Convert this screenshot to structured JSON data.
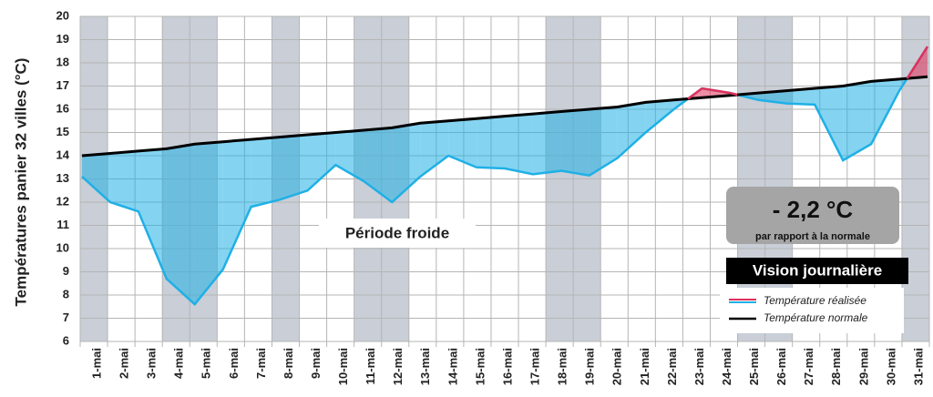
{
  "chart_data": {
    "type": "line",
    "y_axis_label": "Températures panier 32 villes (°C)",
    "categories": [
      "1-mai",
      "2-mai",
      "3-mai",
      "4-mai",
      "5-mai",
      "6-mai",
      "7-mai",
      "8-mai",
      "9-mai",
      "10-mai",
      "11-mai",
      "12-mai",
      "13-mai",
      "14-mai",
      "15-mai",
      "16-mai",
      "17-mai",
      "18-mai",
      "19-mai",
      "20-mai",
      "21-mai",
      "22-mai",
      "23-mai",
      "24-mai",
      "25-mai",
      "26-mai",
      "27-mai",
      "28-mai",
      "29-mai",
      "30-mai",
      "31-mai"
    ],
    "series": [
      {
        "name": "Température réalisée",
        "color": "#1fb0e6",
        "color_above": "#e0305a",
        "values": [
          13.1,
          12.0,
          11.6,
          8.7,
          7.6,
          9.1,
          11.8,
          12.1,
          12.5,
          13.6,
          12.9,
          12.0,
          13.1,
          14.0,
          13.5,
          13.45,
          13.2,
          13.35,
          13.15,
          13.9,
          15.0,
          16.0,
          16.9,
          16.7,
          16.4,
          16.25,
          16.2,
          13.8,
          14.5,
          16.8,
          18.7
        ]
      },
      {
        "name": "Température normale",
        "color": "#000000",
        "values": [
          14.0,
          14.1,
          14.2,
          14.3,
          14.5,
          14.6,
          14.7,
          14.8,
          14.9,
          15.0,
          15.1,
          15.2,
          15.4,
          15.5,
          15.6,
          15.7,
          15.8,
          15.9,
          16.0,
          16.1,
          16.3,
          16.4,
          16.5,
          16.6,
          16.7,
          16.8,
          16.9,
          17.0,
          17.2,
          17.3,
          17.4
        ]
      }
    ],
    "ylim": [
      6,
      20
    ],
    "yticks": [
      6,
      7,
      8,
      9,
      10,
      11,
      12,
      13,
      14,
      15,
      16,
      17,
      18,
      19,
      20
    ],
    "grid": true,
    "annotations": {
      "period": "Période froide",
      "delta": "- 2,2 °C",
      "delta_note": "par rapport à la normale",
      "view": "Vision journalière"
    }
  }
}
